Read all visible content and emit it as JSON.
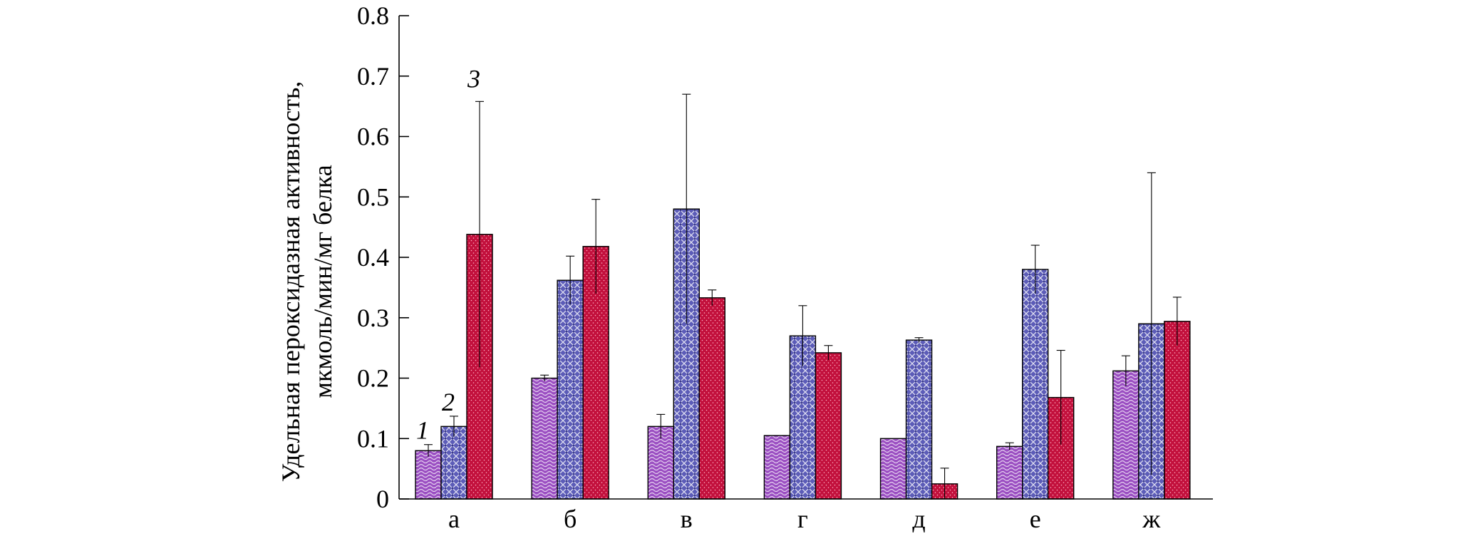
{
  "chart_data": {
    "type": "bar",
    "ylabel_line1": "Удельная пероксидазная активность,",
    "ylabel_line2": "мкмоль/мин/мг белка",
    "xlabel": "",
    "ylim": [
      0,
      0.8
    ],
    "yticks": [
      "0",
      "0.1",
      "0.2",
      "0.3",
      "0.4",
      "0.5",
      "0.6",
      "0.7",
      "0.8"
    ],
    "categories": [
      "а",
      "б",
      "в",
      "г",
      "д",
      "е",
      "ж"
    ],
    "series": [
      {
        "name": "1",
        "color": "#9b4fc2",
        "pattern": "waves",
        "values": [
          0.08,
          0.2,
          0.12,
          0.105,
          0.1,
          0.087,
          0.212
        ],
        "errors": [
          0.01,
          0.005,
          0.02,
          0.0,
          0.0,
          0.006,
          0.025
        ]
      },
      {
        "name": "2",
        "color": "#5c5cb8",
        "pattern": "lattice",
        "values": [
          0.12,
          0.362,
          0.48,
          0.27,
          0.263,
          0.38,
          0.29
        ],
        "errors": [
          0.017,
          0.04,
          0.19,
          0.05,
          0.004,
          0.04,
          0.25
        ]
      },
      {
        "name": "3",
        "color": "#c2103c",
        "pattern": "dots",
        "values": [
          0.438,
          0.418,
          0.333,
          0.242,
          0.025,
          0.168,
          0.294
        ],
        "errors": [
          0.22,
          0.078,
          0.013,
          0.012,
          0.026,
          0.078,
          0.04
        ]
      }
    ]
  }
}
